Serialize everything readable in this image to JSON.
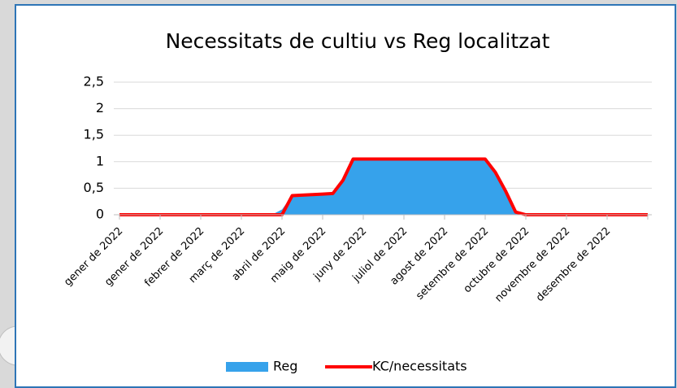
{
  "chart_data": {
    "type": "area_line",
    "title": "Necessitats de cultiu vs Reg localitzat",
    "categories": [
      "gener de 2022",
      null,
      null,
      null,
      "gener de 2022",
      null,
      null,
      null,
      "febrer de 2022",
      null,
      null,
      null,
      "març de 2022",
      null,
      null,
      null,
      "abril de 2022",
      null,
      null,
      null,
      "maig de 2022",
      null,
      null,
      null,
      "juny de 2022",
      null,
      null,
      null,
      "juliol de 2022",
      null,
      null,
      null,
      "agost de 2022",
      null,
      null,
      null,
      "setembre de 2022",
      null,
      null,
      null,
      "octubre de 2022",
      null,
      null,
      null,
      "novembre de 2022",
      null,
      null,
      null,
      "desembre de 2022",
      null,
      null,
      null,
      null
    ],
    "series": [
      {
        "name": "Reg",
        "type": "area",
        "color": "#36a2eb",
        "values": [
          0,
          0,
          0,
          0,
          0,
          0,
          0,
          0,
          0,
          0,
          0,
          0,
          0,
          0,
          0,
          0,
          0.1,
          0.36,
          0.37,
          0.38,
          0.39,
          0.4,
          0.65,
          1.05,
          1.05,
          1.05,
          1.05,
          1.05,
          1.05,
          1.05,
          1.05,
          1.05,
          1.05,
          1.05,
          1.05,
          1.05,
          1.05,
          0.8,
          0.5,
          0.05,
          0,
          0,
          0,
          0,
          0,
          0,
          0,
          0,
          0,
          0,
          0,
          0,
          0
        ]
      },
      {
        "name": "KC/necessitats",
        "type": "line",
        "color": "#ff0000",
        "values": [
          0,
          0,
          0,
          0,
          0,
          0,
          0,
          0,
          0,
          0,
          0,
          0,
          0,
          0,
          0,
          0,
          0,
          0.36,
          0.37,
          0.38,
          0.39,
          0.4,
          0.65,
          1.05,
          1.05,
          1.05,
          1.05,
          1.05,
          1.05,
          1.05,
          1.05,
          1.05,
          1.05,
          1.05,
          1.05,
          1.05,
          1.05,
          0.8,
          0.45,
          0.05,
          0,
          0,
          0,
          0,
          0,
          0,
          0,
          0,
          0,
          0,
          0,
          0,
          0
        ]
      }
    ],
    "ylim": [
      0,
      2.5
    ],
    "yticks": [
      0,
      {
        "value": 0.5,
        "label": "0,5"
      },
      1,
      {
        "value": 1.5,
        "label": "1,5"
      },
      2,
      {
        "value": 2.5,
        "label": "2,5"
      }
    ],
    "grid": true,
    "legend": "bottom"
  }
}
